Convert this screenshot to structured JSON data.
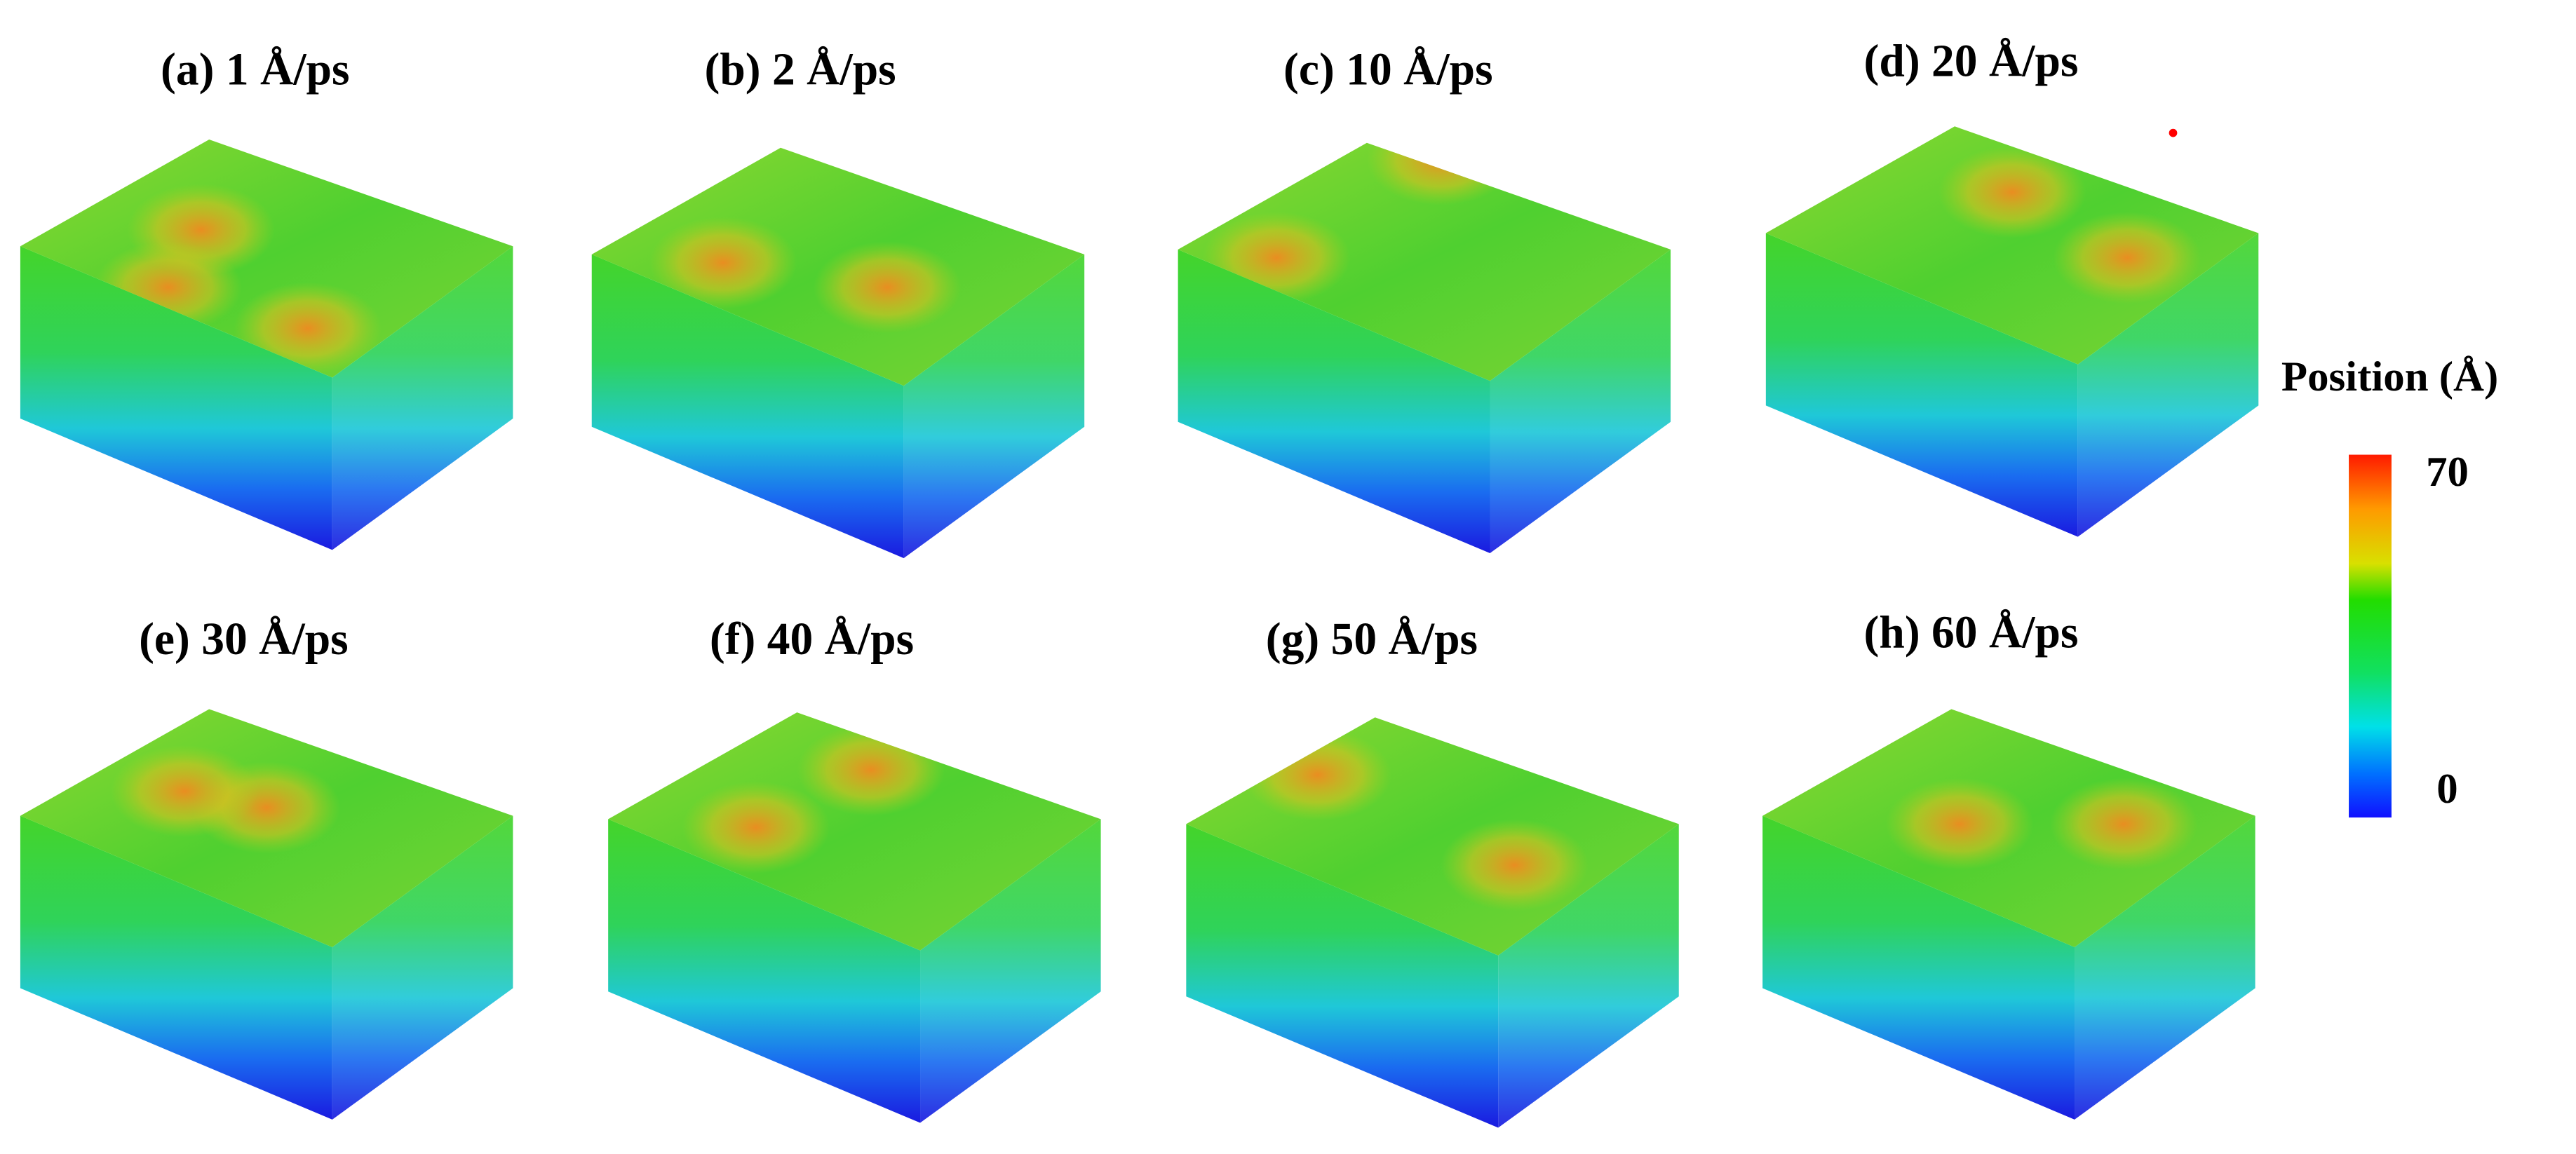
{
  "panels": [
    {
      "title": "(a) 1 Å/ps"
    },
    {
      "title": "(b) 2 Å/ps"
    },
    {
      "title": "(c) 10 Å/ps"
    },
    {
      "title": "(d) 20 Å/ps"
    },
    {
      "title": "(e) 30 Å/ps"
    },
    {
      "title": "(f) 40 Å/ps"
    },
    {
      "title": "(g) 50 Å/ps"
    },
    {
      "title": "(h) 60 Å/ps"
    }
  ],
  "colorbar": {
    "title": "Position (Å)",
    "range": [
      0,
      70
    ],
    "ticks": [
      0,
      70
    ]
  }
}
